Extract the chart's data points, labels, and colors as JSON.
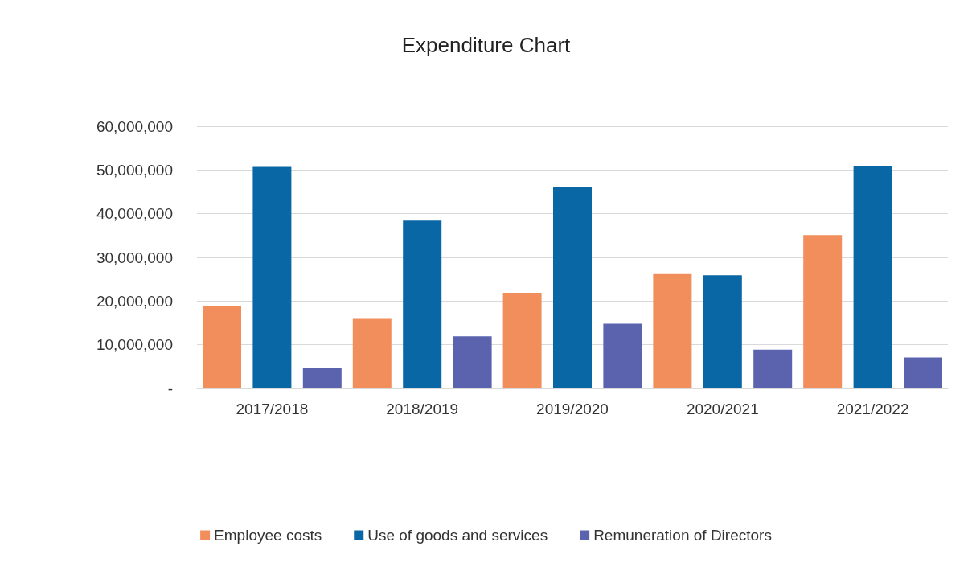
{
  "chart_data": {
    "type": "bar",
    "title": "Expenditure Chart",
    "categories": [
      "2017/2018",
      "2018/2019",
      "2019/2020",
      "2020/2021",
      "2021/2022"
    ],
    "series": [
      {
        "name": "Employee costs",
        "color": "#f28e5b",
        "values": [
          18900000,
          15900000,
          21900000,
          26200000,
          35100000
        ]
      },
      {
        "name": "Use of goods and services",
        "color": "#0a67a6",
        "values": [
          50700000,
          38400000,
          46000000,
          25900000,
          50800000
        ]
      },
      {
        "name": "Remuneration of Directors",
        "color": "#5b62ae",
        "values": [
          4600000,
          11900000,
          14800000,
          8900000,
          7100000
        ]
      }
    ],
    "ylim": [
      0,
      60000000
    ],
    "yticks": [
      {
        "value": 0,
        "label": "-"
      },
      {
        "value": 10000000,
        "label": "10,000,000"
      },
      {
        "value": 20000000,
        "label": "20,000,000"
      },
      {
        "value": 30000000,
        "label": "30,000,000"
      },
      {
        "value": 40000000,
        "label": "40,000,000"
      },
      {
        "value": 50000000,
        "label": "50,000,000"
      },
      {
        "value": 60000000,
        "label": "60,000,000"
      }
    ],
    "grid": "y",
    "legend": "bottom"
  }
}
